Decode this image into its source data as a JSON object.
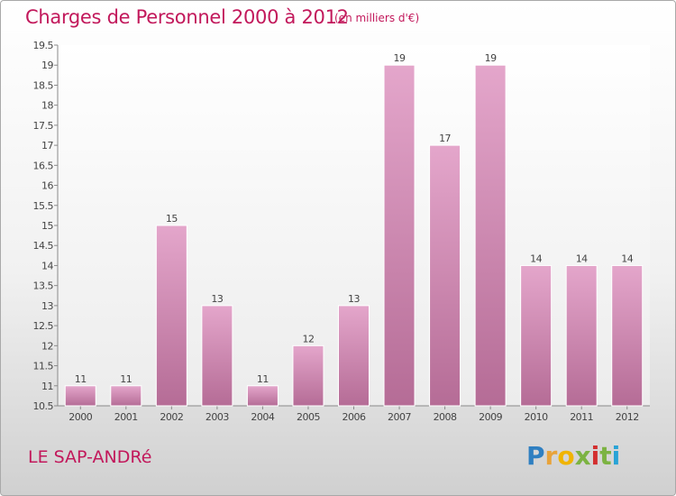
{
  "header": {
    "title": "Charges de Personnel 2000 à 2012",
    "unit": "(en milliers d'€)"
  },
  "footer": {
    "commune": "LE SAP-ANDRé",
    "logo_letters": [
      "P",
      "r",
      "o",
      "x",
      "i",
      "t",
      "i"
    ],
    "logo_colors": [
      "#2f7fc1",
      "#e8a33a",
      "#f0b400",
      "#7cb342",
      "#d32f2f",
      "#7cb342",
      "#29a3d6"
    ]
  },
  "chart_data": {
    "type": "bar",
    "title": "Charges de Personnel 2000 à 2012",
    "xlabel": "",
    "ylabel": "",
    "categories": [
      "2000",
      "2001",
      "2002",
      "2003",
      "2004",
      "2005",
      "2006",
      "2007",
      "2008",
      "2009",
      "2010",
      "2011",
      "2012"
    ],
    "values": [
      11,
      11,
      15,
      13,
      11,
      12,
      13,
      19,
      17,
      19,
      14,
      14,
      14
    ],
    "data_labels": [
      "11",
      "11",
      "15",
      "13",
      "11",
      "12",
      "13",
      "19",
      "17",
      "19",
      "14",
      "14",
      "14"
    ],
    "ylim": [
      10.5,
      19.5
    ],
    "yticks": [
      "10.5",
      "11",
      "11.5",
      "12",
      "12.5",
      "13",
      "13.5",
      "14",
      "14.5",
      "15",
      "15.5",
      "16",
      "16.5",
      "17",
      "17.5",
      "18",
      "18.5",
      "19",
      "19.5"
    ],
    "grid": false,
    "legend": "none",
    "bar_color": "#c06c98"
  }
}
